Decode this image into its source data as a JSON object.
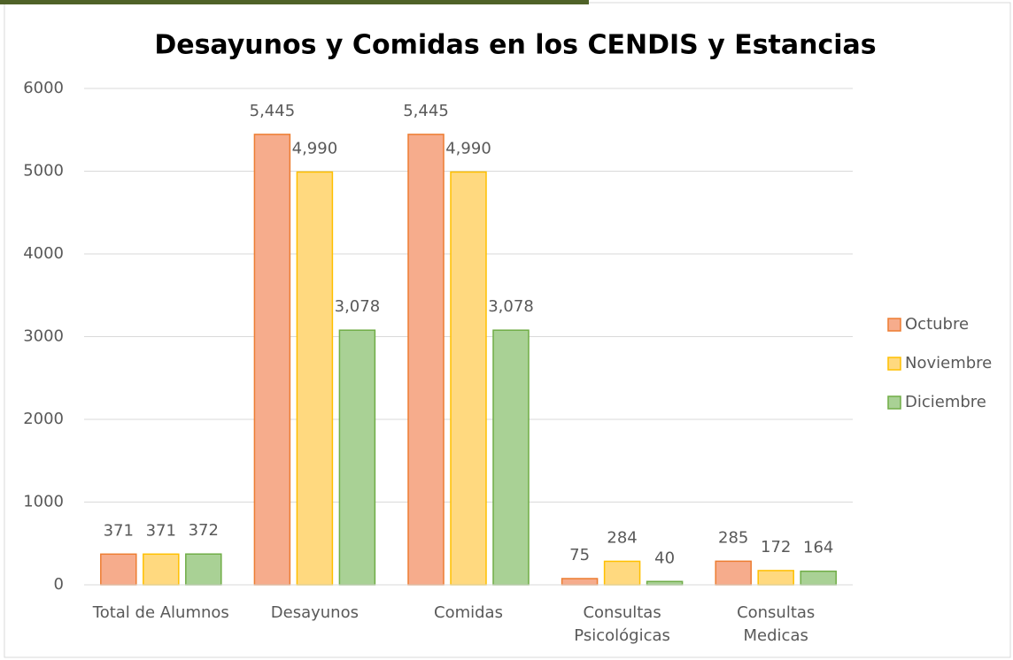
{
  "chart_data": {
    "type": "bar",
    "title": "Desayunos y Comidas en los CENDIS y Estancias",
    "categories": [
      "Total de Alumnos",
      "Desayunos",
      "Comidas",
      "Consultas Psicológicas",
      "Consultas Medicas"
    ],
    "series": [
      {
        "name": "Octubre",
        "color": "#f6ac8c",
        "border": "#ed7d31",
        "values": [
          371,
          5445,
          5445,
          75,
          285
        ],
        "value_labels": [
          "371",
          "5,445",
          "5,445",
          "75",
          "285"
        ]
      },
      {
        "name": "Noviembre",
        "color": "#ffd97f",
        "border": "#ffc000",
        "values": [
          371,
          4990,
          4990,
          284,
          172
        ],
        "value_labels": [
          "371",
          "4,990",
          "4,990",
          "284",
          "172"
        ]
      },
      {
        "name": "Diciembre",
        "color": "#a9d195",
        "border": "#70ad47",
        "values": [
          372,
          3078,
          3078,
          40,
          164
        ],
        "value_labels": [
          "372",
          "3,078",
          "3,078",
          "40",
          "164"
        ]
      }
    ],
    "ylim": [
      0,
      6000
    ],
    "yticks": [
      0,
      1000,
      2000,
      3000,
      4000,
      5000,
      6000
    ],
    "grid": true,
    "legend": "right"
  }
}
